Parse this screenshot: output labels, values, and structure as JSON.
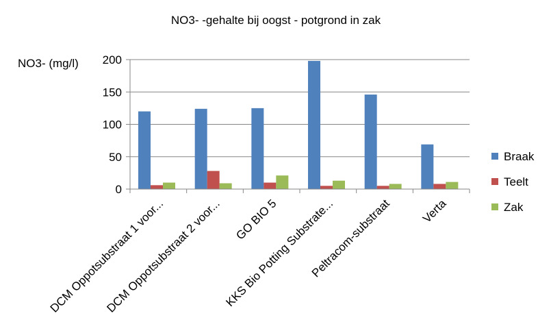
{
  "chart_data": {
    "type": "bar",
    "title": "NO3- -gehalte bij oogst - potgrond in zak",
    "xlabel": "",
    "ylabel": "NO3- (mg/l)",
    "ylim": [
      0,
      200
    ],
    "yticks": [
      "0",
      "50",
      "100",
      "150",
      "200"
    ],
    "grid": true,
    "legend_position": "right",
    "categories": [
      "DCM Oppotsubstraat 1 voor...",
      "DCM Oppotsubstraat 2 voor...",
      "GO BIO 5",
      "KKS Bio Potting Substrate...",
      "Peltracom-substraat",
      "Verta"
    ],
    "series": [
      {
        "name": "Braak",
        "color": "#4f81bd",
        "values": [
          120,
          124,
          125,
          198,
          146,
          69
        ]
      },
      {
        "name": "Teelt",
        "color": "#c0504d",
        "values": [
          6,
          28,
          10,
          5,
          5,
          8
        ]
      },
      {
        "name": "Zak",
        "color": "#9bbb59",
        "values": [
          10,
          9,
          21,
          13,
          8,
          11
        ]
      }
    ]
  }
}
